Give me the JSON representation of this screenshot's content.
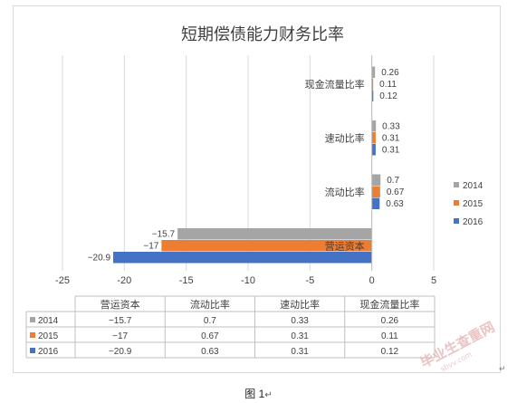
{
  "chart_data": {
    "type": "bar",
    "orientation": "horizontal",
    "title": "短期偿债能力财务比率",
    "categories": [
      "营运资本",
      "流动比率",
      "速动比率",
      "现金流量比率"
    ],
    "series": [
      {
        "name": "2014",
        "color": "#a5a5a5",
        "values": [
          -15.7,
          0.7,
          0.33,
          0.26
        ],
        "labels": [
          "−15.7",
          "0.7",
          "0.33",
          "0.26"
        ]
      },
      {
        "name": "2015",
        "color": "#ed7d31",
        "values": [
          -17,
          0.67,
          0.31,
          0.11
        ],
        "labels": [
          "−17",
          "0.67",
          "0.31",
          "0.11"
        ]
      },
      {
        "name": "2016",
        "color": "#4472c4",
        "values": [
          -20.9,
          0.63,
          0.31,
          0.12
        ],
        "labels": [
          "−20.9",
          "0.63",
          "0.31",
          "0.12"
        ]
      }
    ],
    "xlim": [
      -25,
      5
    ],
    "x_ticks": [
      -25,
      -20,
      -15,
      -10,
      -5,
      0,
      5
    ],
    "x_tick_labels": [
      "-25",
      "-20",
      "-15",
      "-10",
      "-5",
      "0",
      "5"
    ],
    "grid": "vertical",
    "legend": "right",
    "legend_order": [
      "2014",
      "2015",
      "2016"
    ],
    "data_table": true
  },
  "caption": {
    "label": "图 1",
    "return_mark": "↵"
  },
  "paragraph_mark": "↵",
  "watermark": {
    "text": "毕业生查重网",
    "sub": "sbvv.com"
  }
}
